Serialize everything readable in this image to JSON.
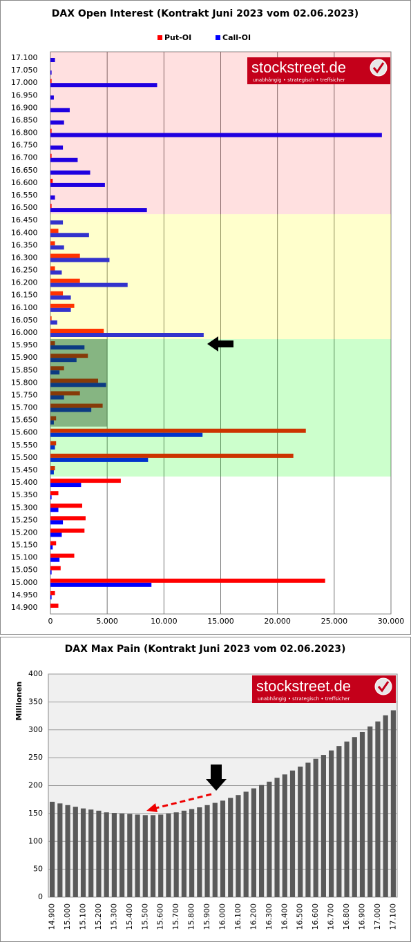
{
  "logo": {
    "name": "stockstreet.de",
    "tagline": "unabhängig • strategisch • treffsicher"
  },
  "chart_data": [
    {
      "type": "hbar",
      "title": "DAX Open Interest (Kontrakt Juni 2023 vom 02.06.2023)",
      "categories": [
        "14.900",
        "14.950",
        "15.000",
        "15.050",
        "15.100",
        "15.150",
        "15.200",
        "15.250",
        "15.300",
        "15.350",
        "15.400",
        "15.450",
        "15.500",
        "15.550",
        "15.600",
        "15.650",
        "15.700",
        "15.750",
        "15.800",
        "15.850",
        "15.900",
        "15.950",
        "16.000",
        "16.050",
        "16.100",
        "16.150",
        "16.200",
        "16.250",
        "16.300",
        "16.350",
        "16.400",
        "16.450",
        "16.500",
        "16.550",
        "16.600",
        "16.650",
        "16.700",
        "16.750",
        "16.800",
        "16.850",
        "16.900",
        "16.950",
        "17.000",
        "17.050",
        "17.100"
      ],
      "series": [
        {
          "name": "Put-OI",
          "color": "#ff0000",
          "values": [
            700,
            400,
            24200,
            900,
            2100,
            500,
            3000,
            3100,
            2800,
            700,
            6200,
            400,
            21400,
            500,
            22500,
            500,
            4600,
            2600,
            4200,
            1200,
            3300,
            400,
            4700,
            100,
            2100,
            1100,
            2600,
            400,
            2600,
            400,
            700,
            0,
            100,
            0,
            200,
            0,
            100,
            0,
            100,
            0,
            0,
            0,
            100,
            0,
            0
          ]
        },
        {
          "name": "Call-OI",
          "color": "#0000ff",
          "values": [
            0,
            100,
            8900,
            100,
            800,
            200,
            1000,
            1100,
            700,
            100,
            2700,
            300,
            8600,
            400,
            13400,
            300,
            3600,
            1200,
            4900,
            800,
            2300,
            3000,
            13500,
            600,
            1800,
            1800,
            6800,
            1000,
            5200,
            1200,
            3400,
            1100,
            8500,
            400,
            4800,
            3500,
            2400,
            1100,
            29200,
            1200,
            1700,
            300,
            9400,
            100,
            400
          ]
        }
      ],
      "xlim": [
        0,
        30000
      ],
      "xticks": [
        0,
        {
          "value": 5000,
          "label": "5.000"
        },
        {
          "value": 10000,
          "label": "10.000"
        },
        {
          "value": 15000,
          "label": "15.000"
        },
        {
          "value": 20000,
          "label": "20.000"
        },
        {
          "value": 25000,
          "label": "25.000"
        },
        {
          "value": 30000,
          "label": "30.000"
        }
      ],
      "grid": true,
      "legend": "top"
    },
    {
      "type": "bar",
      "title": "DAX Max Pain (Kontrakt Juni 2023 vom 02.06.2023)",
      "y_label": "Millionen",
      "categories": [
        "14.900",
        "14.950",
        "15.000",
        "15.050",
        "15.100",
        "15.150",
        "15.200",
        "15.250",
        "15.300",
        "15.350",
        "15.400",
        "15.450",
        "15.500",
        "15.550",
        "15.600",
        "15.650",
        "15.700",
        "15.750",
        "15.800",
        "15.850",
        "15.900",
        "15.950",
        "16.000",
        "16.050",
        "16.100",
        "16.150",
        "16.200",
        "16.250",
        "16.300",
        "16.350",
        "16.400",
        "16.450",
        "16.500",
        "16.550",
        "16.600",
        "16.650",
        "16.700",
        "16.750",
        "16.800",
        "16.850",
        "16.900",
        "16.950",
        "17.000",
        "17.050",
        "17.100"
      ],
      "values": [
        171,
        168,
        165,
        162,
        159,
        157,
        155,
        152,
        151,
        150,
        149,
        148,
        147,
        147,
        148,
        150,
        152,
        155,
        158,
        161,
        165,
        169,
        173,
        178,
        183,
        189,
        195,
        201,
        207,
        214,
        220,
        227,
        234,
        241,
        248,
        255,
        263,
        271,
        279,
        287,
        296,
        306,
        315,
        326,
        335
      ],
      "color": "#595959",
      "ylim": [
        0,
        400
      ],
      "yticks": [
        0,
        50,
        100,
        150,
        200,
        250,
        300,
        350,
        400
      ],
      "grid": true
    }
  ]
}
